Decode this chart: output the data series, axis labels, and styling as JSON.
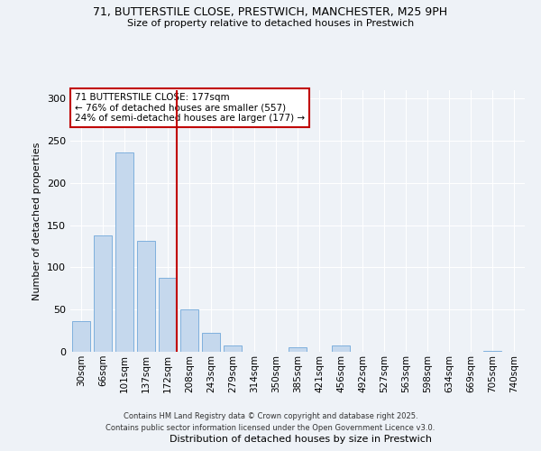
{
  "title_line1": "71, BUTTERSTILE CLOSE, PRESTWICH, MANCHESTER, M25 9PH",
  "title_line2": "Size of property relative to detached houses in Prestwich",
  "xlabel": "Distribution of detached houses by size in Prestwich",
  "ylabel": "Number of detached properties",
  "categories": [
    "30sqm",
    "66sqm",
    "101sqm",
    "137sqm",
    "172sqm",
    "208sqm",
    "243sqm",
    "279sqm",
    "314sqm",
    "350sqm",
    "385sqm",
    "421sqm",
    "456sqm",
    "492sqm",
    "527sqm",
    "563sqm",
    "598sqm",
    "634sqm",
    "669sqm",
    "705sqm",
    "740sqm"
  ],
  "values": [
    36,
    138,
    236,
    132,
    88,
    50,
    22,
    7,
    0,
    0,
    5,
    0,
    8,
    0,
    0,
    0,
    0,
    0,
    0,
    1,
    0
  ],
  "bar_color": "#c5d8ed",
  "bar_edge_color": "#5b9bd5",
  "highlight_line_index": 4,
  "highlight_color": "#c00000",
  "ylim": [
    0,
    310
  ],
  "yticks": [
    0,
    50,
    100,
    150,
    200,
    250,
    300
  ],
  "annotation_title": "71 BUTTERSTILE CLOSE: 177sqm",
  "annotation_line2": "← 76% of detached houses are smaller (557)",
  "annotation_line3": "24% of semi-detached houses are larger (177) →",
  "footer_line1": "Contains HM Land Registry data © Crown copyright and database right 2025.",
  "footer_line2": "Contains public sector information licensed under the Open Government Licence v3.0.",
  "bg_color": "#eef2f7",
  "grid_color": "#ffffff",
  "annotation_box_color": "#ffffff",
  "annotation_box_edge": "#c00000"
}
